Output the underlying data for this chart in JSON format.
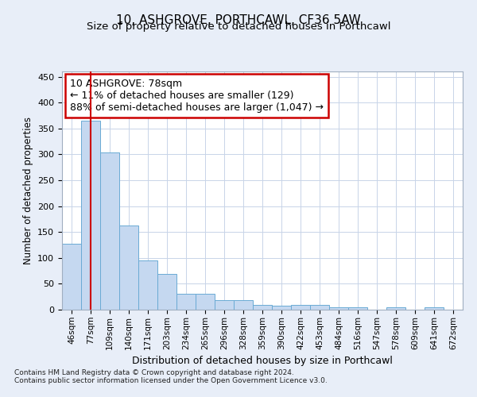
{
  "title": "10, ASHGROVE, PORTHCAWL, CF36 5AW",
  "subtitle": "Size of property relative to detached houses in Porthcawl",
  "xlabel": "Distribution of detached houses by size in Porthcawl",
  "ylabel": "Number of detached properties",
  "categories": [
    "46sqm",
    "77sqm",
    "109sqm",
    "140sqm",
    "171sqm",
    "203sqm",
    "234sqm",
    "265sqm",
    "296sqm",
    "328sqm",
    "359sqm",
    "390sqm",
    "422sqm",
    "453sqm",
    "484sqm",
    "516sqm",
    "547sqm",
    "578sqm",
    "609sqm",
    "641sqm",
    "672sqm"
  ],
  "values": [
    128,
    365,
    303,
    163,
    95,
    69,
    30,
    30,
    19,
    18,
    9,
    7,
    9,
    9,
    4,
    4,
    0,
    4,
    0,
    4,
    0
  ],
  "bar_color": "#c5d8f0",
  "bar_edge_color": "#6aaad4",
  "vline_x": 1.0,
  "vline_color": "#cc0000",
  "annotation_line1": "10 ASHGROVE: 78sqm",
  "annotation_line2": "← 11% of detached houses are smaller (129)",
  "annotation_line3": "88% of semi-detached houses are larger (1,047) →",
  "annotation_box_color": "#ffffff",
  "annotation_box_edge_color": "#cc0000",
  "ylim": [
    0,
    460
  ],
  "yticks": [
    0,
    50,
    100,
    150,
    200,
    250,
    300,
    350,
    400,
    450
  ],
  "footer1": "Contains HM Land Registry data © Crown copyright and database right 2024.",
  "footer2": "Contains public sector information licensed under the Open Government Licence v3.0.",
  "background_color": "#e8eef8",
  "plot_background_color": "#ffffff",
  "grid_color": "#c8d4e8"
}
